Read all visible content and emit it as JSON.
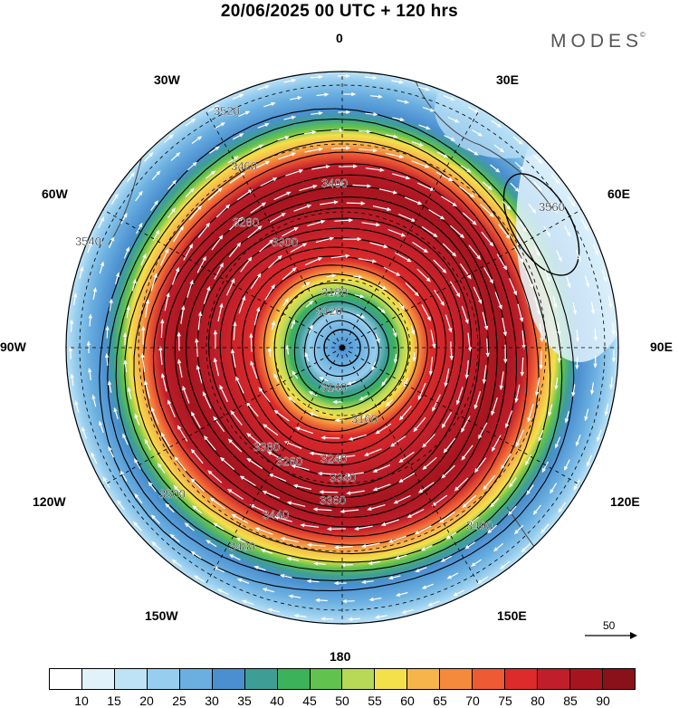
{
  "header": {
    "title": "20/06/2025  00 UTC  + 120 hrs",
    "brand": "MODES"
  },
  "longitude_labels": [
    {
      "id": "0",
      "text": "0"
    },
    {
      "id": "30E",
      "text": "30E"
    },
    {
      "id": "60E",
      "text": "60E"
    },
    {
      "id": "90E",
      "text": "90E"
    },
    {
      "id": "120E",
      "text": "120E"
    },
    {
      "id": "150E",
      "text": "150E"
    },
    {
      "id": "180",
      "text": "180"
    },
    {
      "id": "150W",
      "text": "150W"
    },
    {
      "id": "120W",
      "text": "120W"
    },
    {
      "id": "90W",
      "text": "90W"
    },
    {
      "id": "60W",
      "text": "60W"
    },
    {
      "id": "30W",
      "text": "30W"
    }
  ],
  "contour_labels": [
    "3120",
    "3140",
    "3160",
    "3180",
    "3240",
    "3260",
    "3280",
    "3300",
    "3340",
    "3360",
    "3380",
    "3400",
    "3440",
    "3460",
    "3480",
    "3490",
    "3500",
    "3520",
    "3540",
    "3560"
  ],
  "vector_reference": {
    "label": "50"
  },
  "colorbar": {
    "colors": [
      "#ffffff",
      "#e2f2fb",
      "#bfe3f6",
      "#97cdee",
      "#6aafe0",
      "#4b8fd0",
      "#3e9e96",
      "#3cb25b",
      "#61c24d",
      "#b7d957",
      "#f4e04a",
      "#f6b44a",
      "#f48a3c",
      "#ee5a33",
      "#dd2a2a",
      "#bf1e2a",
      "#a6151f",
      "#8a1019"
    ],
    "ticks": [
      "10",
      "15",
      "20",
      "25",
      "30",
      "35",
      "40",
      "45",
      "50",
      "55",
      "60",
      "65",
      "70",
      "75",
      "80",
      "85",
      "90"
    ]
  }
}
